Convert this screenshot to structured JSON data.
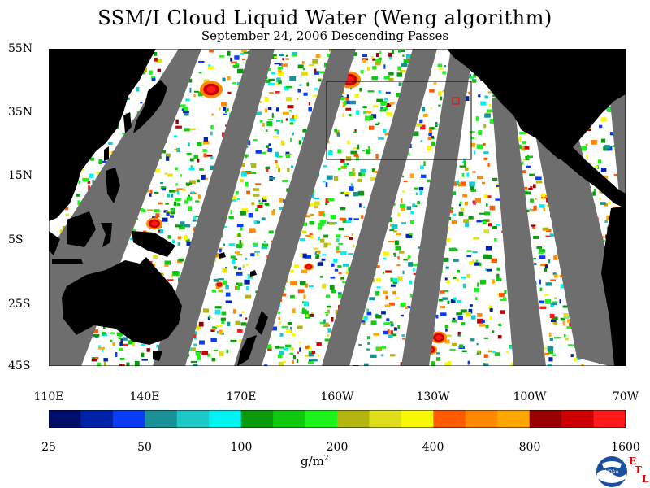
{
  "header": {
    "title": "SSM/I Cloud Liquid Water (Weng algorithm)",
    "subtitle": "September 24, 2006  Descending Passes"
  },
  "axes": {
    "lat_labels": [
      "55N",
      "35N",
      "15N",
      "5S",
      "25S",
      "45S"
    ],
    "lon_labels": [
      "110E",
      "140E",
      "170E",
      "160W",
      "130W",
      "100W",
      "70W"
    ]
  },
  "colorbar": {
    "tick_labels": [
      "25",
      "50",
      "100",
      "200",
      "400",
      "800",
      "1600"
    ],
    "units_main": "g/m",
    "units_sup": "2",
    "colors": [
      "#000d6b",
      "#0022a8",
      "#0a3cf5",
      "#1a9196",
      "#1ec8c8",
      "#00f2f2",
      "#0b9a0b",
      "#10c810",
      "#1df21d",
      "#b5b512",
      "#dede1a",
      "#f8f800",
      "#ff5a00",
      "#ff8800",
      "#ffa600",
      "#990000",
      "#cc0000",
      "#ff1a1a"
    ]
  },
  "logo": {
    "noaa_text": "NOAA",
    "etl_letters": [
      "E",
      "T",
      "L"
    ]
  },
  "map": {
    "ocean_color": "#ffffff",
    "land_color": "#000000",
    "gap_color": "#6e6e6e"
  }
}
